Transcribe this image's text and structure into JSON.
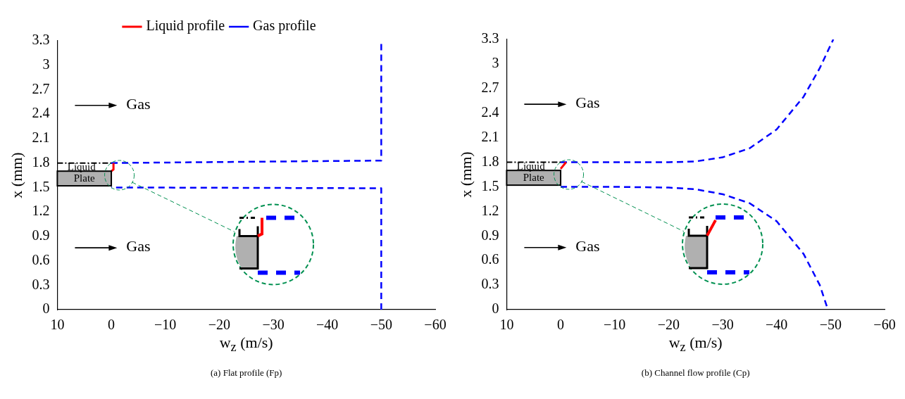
{
  "chart_data": [
    {
      "type": "line",
      "title": "(a) Flat profile (Fp)",
      "xlabel": "w$_{z}$ (m/s)",
      "ylabel": "x (mm)",
      "xlim": [
        10,
        -60
      ],
      "xticks": [
        10,
        0,
        -10,
        -20,
        -30,
        -40,
        -50,
        -60
      ],
      "ylim": [
        0,
        3.3
      ],
      "yticks": [
        0,
        0.3,
        0.6,
        0.9,
        1.2,
        1.5,
        1.8,
        2.1,
        2.4,
        2.7,
        3,
        3.3
      ],
      "grid": false,
      "legend": "top",
      "marker": "none",
      "annotations": [
        "Gas",
        "Gas",
        "Liquid",
        "Plate"
      ],
      "series": [
        {
          "name": "Liquid profile",
          "color": "#ff0000",
          "line_style": "solid",
          "x": [
            0,
            -0.4,
            -0.4
          ],
          "values": [
            1.7,
            1.72,
            1.8
          ]
        },
        {
          "name": "Gas profile",
          "color": "#0000ff",
          "line_style": "dashed",
          "x": [
            -50,
            -50,
            0,
            null,
            0,
            -50,
            -50
          ],
          "values": [
            0,
            1.49,
            1.5,
            null,
            1.8,
            1.83,
            3.3
          ]
        }
      ]
    },
    {
      "type": "line",
      "title": "(b) Channel flow profile (Cp)",
      "xlabel": "w$_{z}$ (m/s)",
      "ylabel": "x (mm)",
      "xlim": [
        10,
        -60
      ],
      "xticks": [
        10,
        0,
        -10,
        -20,
        -30,
        -40,
        -50,
        -60
      ],
      "ylim": [
        0,
        3.3
      ],
      "yticks": [
        0,
        0.3,
        0.6,
        0.9,
        1.2,
        1.5,
        1.8,
        2.1,
        2.4,
        2.7,
        3,
        3.3
      ],
      "grid": false,
      "legend": false,
      "marker": "none",
      "annotations": [
        "Gas",
        "Gas",
        "Liquid",
        "Plate"
      ],
      "series": [
        {
          "color": "#ff0000",
          "line_style": "solid",
          "x": [
            0,
            -1
          ],
          "values": [
            1.72,
            1.8
          ]
        },
        {
          "color": "#0000ff",
          "line_style": "dashed",
          "x": [
            0,
            -10,
            -20,
            -25,
            -30,
            -35,
            -40,
            -45,
            -48,
            -50.5,
            null,
            0,
            -10,
            -20,
            -25,
            -30,
            -35,
            -40,
            -45,
            -48,
            -49.5
          ],
          "values": [
            1.8,
            1.8,
            1.8,
            1.81,
            1.86,
            1.97,
            2.2,
            2.6,
            2.95,
            3.3,
            null,
            1.5,
            1.5,
            1.49,
            1.47,
            1.41,
            1.3,
            1.08,
            0.68,
            0.3,
            0
          ]
        }
      ]
    }
  ]
}
